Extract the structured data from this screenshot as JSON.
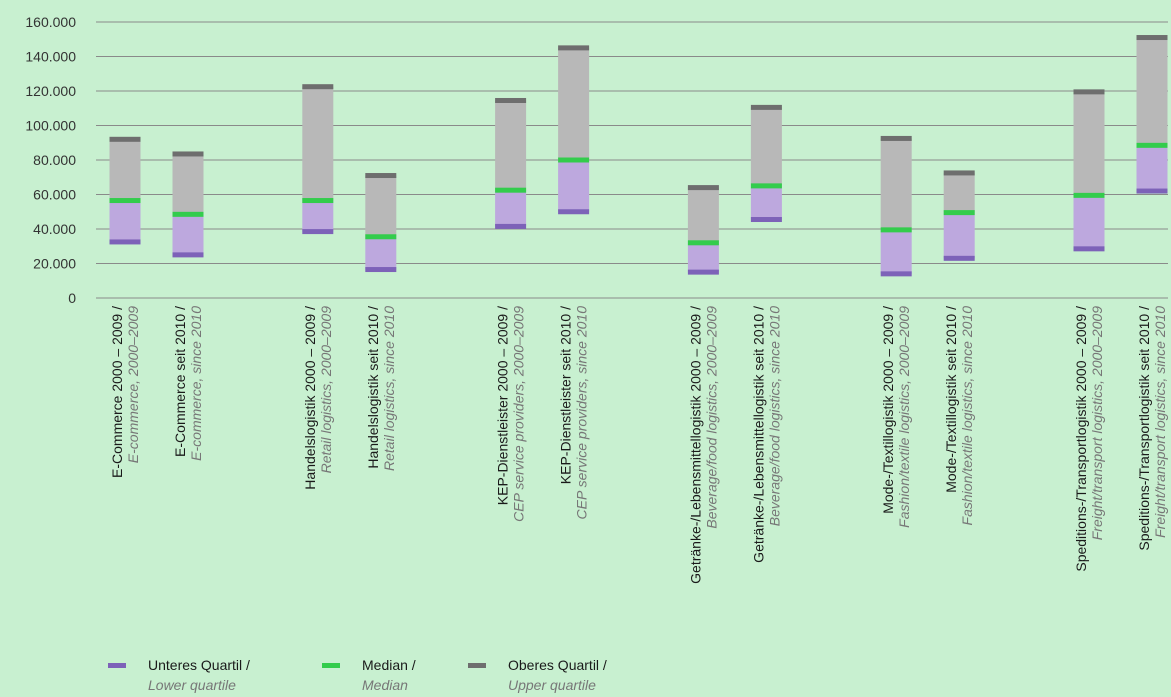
{
  "chart_data": {
    "type": "bar",
    "chart_kind": "floating-range (boxplot-style)",
    "title": "",
    "xlabel": "",
    "ylabel": "",
    "ylim": [
      0,
      160000
    ],
    "yticks": [
      0,
      20000,
      40000,
      60000,
      80000,
      100000,
      120000,
      140000,
      160000
    ],
    "ytick_labels": [
      "0",
      "20.000",
      "40.000",
      "60.000",
      "80.000",
      "100.000",
      "120.000",
      "140.000",
      "160.000"
    ],
    "grid": true,
    "legend_position": "bottom-left",
    "categories": [
      {
        "de": "E-Commerce 2000 – 2009 /",
        "en": "E-commerce, 2000–2009",
        "group": 0
      },
      {
        "de": "E-Commerce seit 2010 /",
        "en": "E-commerce, since 2010",
        "group": 0
      },
      {
        "de": "Handelslogistik 2000 – 2009 /",
        "en": "Retail logistics, 2000–2009",
        "group": 1
      },
      {
        "de": "Handelslogistik seit 2010 /",
        "en": "Retail logistics, since 2010",
        "group": 1
      },
      {
        "de": "KEP-Dienstleister 2000 – 2009 /",
        "en": "CEP service providers, 2000–2009",
        "group": 2
      },
      {
        "de": "KEP-Dienstleister seit 2010 /",
        "en": "CEP service providers, since 2010",
        "group": 2
      },
      {
        "de": "Getränke-/Lebensmittellogistik 2000 – 2009 /",
        "en": "Beverage/food logistics, 2000–2009",
        "group": 3
      },
      {
        "de": "Getränke-/Lebensmittellogistik seit 2010 /",
        "en": "Beverage/food logistics, since 2010",
        "group": 3
      },
      {
        "de": "Mode-/Textillogistik 2000 – 2009 /",
        "en": "Fashion/textile logistics, 2000–2009",
        "group": 4
      },
      {
        "de": "Mode-/Textillogistik seit 2010 /",
        "en": "Fashion/textile logistics, since 2010",
        "group": 4
      },
      {
        "de": "Speditions-/Transportlogistik 2000 – 2009 /",
        "en": "Freight/transport logistics, 2000–2009",
        "group": 5
      },
      {
        "de": "Speditions-/Transportlogistik seit 2010 /",
        "en": "Freight/transport logistics, since 2010",
        "group": 5
      }
    ],
    "series": [
      {
        "name": "Unteres Quartil / Lower quartile",
        "values": [
          32500,
          25000,
          38500,
          16500,
          41500,
          50000,
          15000,
          45500,
          14000,
          23000,
          28500,
          62000
        ]
      },
      {
        "name": "Median / Median",
        "values": [
          56500,
          48500,
          56500,
          35500,
          62500,
          80000,
          32000,
          65000,
          39500,
          49500,
          59500,
          88500
        ]
      },
      {
        "name": "Oberes Quartil / Upper quartile",
        "values": [
          92000,
          83500,
          122500,
          71000,
          114500,
          145000,
          64000,
          110500,
          92500,
          72500,
          119500,
          151000
        ]
      }
    ],
    "colors": {
      "lower_quartile": "#7d62b8",
      "median": "#33cc4c",
      "upper_quartile": "#6e6e6e",
      "lower_box": "#bda8de",
      "upper_box": "#b8b8b8",
      "gridline": "#8a8a8a",
      "background": "#c8f0d0"
    },
    "legend": [
      {
        "key": "lower",
        "de": "Unteres Quartil /",
        "en": "Lower quartile"
      },
      {
        "key": "median",
        "de": "Median /",
        "en": "Median"
      },
      {
        "key": "upper",
        "de": "Oberes Quartil /",
        "en": "Upper quartile"
      }
    ]
  }
}
